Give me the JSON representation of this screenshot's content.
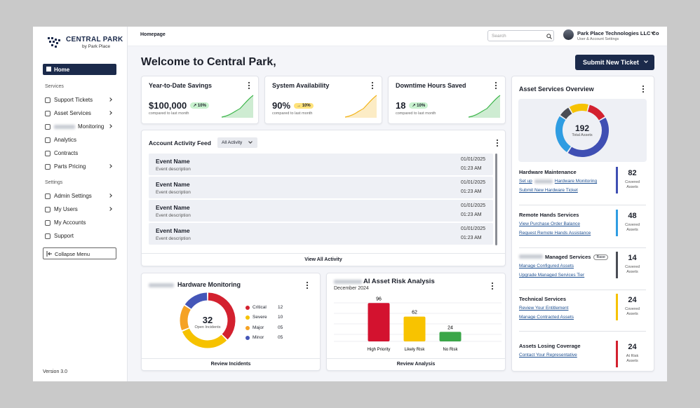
{
  "sidebar": {
    "logo_title": "CENTRAL PARK",
    "logo_subtitle": "by Park Place",
    "home": "Home",
    "services_heading": "Services",
    "services": [
      {
        "label": "Support Tickets",
        "submenu": true
      },
      {
        "label": "Asset Services",
        "submenu": true
      },
      {
        "label": "Monitoring",
        "submenu": true,
        "redacted_prefix": true
      },
      {
        "label": "Analytics",
        "submenu": false
      },
      {
        "label": "Contracts",
        "submenu": false
      },
      {
        "label": "Parts Pricing",
        "submenu": true
      }
    ],
    "settings_heading": "Settings",
    "settings": [
      {
        "label": "Admin Settings",
        "submenu": true
      },
      {
        "label": "My Users",
        "submenu": true
      },
      {
        "label": "My Accounts",
        "submenu": false
      },
      {
        "label": "Support",
        "submenu": false
      }
    ],
    "collapse": "Collapse Menu",
    "version": "Version 3.0"
  },
  "header": {
    "breadcrumb": "Homepage",
    "search_placeholder": "Search",
    "user_name": "Park Place Technologies LLC Co",
    "user_subtitle": "User & Account Settings"
  },
  "welcome": "Welcome to Central Park,",
  "submit_button": "Submit New Ticket",
  "kpis": [
    {
      "title": "Year-to-Date Savings",
      "value": "$100,000",
      "badge": "↗ 10%",
      "badge_color": "#c9f2cf",
      "trend_color": "#3cb54a",
      "note": "compared to last month"
    },
    {
      "title": "System Availability",
      "value": "90%",
      "badge": "→ 10%",
      "badge_color": "#ffe27a",
      "trend_color": "#f2b318",
      "note": "compared to last month"
    },
    {
      "title": "Downtime Hours Saved",
      "value": "18",
      "badge": "↗ 10%",
      "badge_color": "#c9f2cf",
      "trend_color": "#3cb54a",
      "note": "compared to last month"
    }
  ],
  "activity": {
    "title": "Account Activity Feed",
    "filter": "All Activity",
    "events": [
      {
        "name": "Event Name",
        "description": "Event description",
        "date": "01/01/2025",
        "time": "01:23 AM"
      },
      {
        "name": "Event Name",
        "description": "Event description",
        "date": "01/01/2025",
        "time": "01:23 AM"
      },
      {
        "name": "Event Name",
        "description": "Event description",
        "date": "01/01/2025",
        "time": "01:23 AM"
      },
      {
        "name": "Event Name",
        "description": "Event description",
        "date": "01/01/2025",
        "time": "01:23 AM"
      }
    ],
    "footer": "View All Activity"
  },
  "hardware_monitoring": {
    "type": "pie",
    "title": "Hardware Monitoring",
    "center_value": "32",
    "center_label": "Open Incidents",
    "categories": [
      "Critical",
      "Severe",
      "Major",
      "Minor"
    ],
    "values": [
      12,
      10,
      5,
      5
    ],
    "value_labels": [
      "12",
      "10",
      "05",
      "05"
    ],
    "colors": [
      "#d3212f",
      "#f6c200",
      "#f5a224",
      "#4456b8"
    ],
    "footer": "Review Incidents"
  },
  "risk_analysis": {
    "type": "bar",
    "title": "AI Asset Risk Analysis",
    "subtitle": "December 2024",
    "categories": [
      "High Priority",
      "Likely Risk",
      "No Risk"
    ],
    "values": [
      96,
      62,
      24
    ],
    "colors": [
      "#d3122f",
      "#f8c300",
      "#3aa648"
    ],
    "ylim": [
      0,
      100
    ],
    "footer": "Review Analysis"
  },
  "asset_overview": {
    "type": "pie",
    "title": "Asset Services Overview",
    "center_value": "192",
    "center_label": "Total Assets",
    "services": [
      {
        "title": "Hardware Maintenance",
        "links": [
          {
            "before": "Set up",
            "text": "Hardware Monitoring"
          },
          {
            "text": "Submit New Hardware Ticket"
          }
        ],
        "count": 82,
        "count_label": "Covered Assets",
        "color": "#3f4fb3"
      },
      {
        "title": "Remote Hands Services",
        "links": [
          {
            "text": "View Purchase Order Balance"
          },
          {
            "text": "Request Remote Hands Assistance"
          }
        ],
        "count": 48,
        "count_label": "Covered Assets",
        "color": "#2f9de2"
      },
      {
        "title": "Managed Services",
        "redacted_prefix": true,
        "badge": "Base",
        "links": [
          {
            "text": "Manage Configured Assets"
          },
          {
            "text": "Upgrade Managed Services Tier"
          }
        ],
        "count": 14,
        "count_label": "Covered Assets",
        "color": "#4a4d55"
      },
      {
        "title": "Technical Services",
        "links": [
          {
            "text": "Review Your Entitlement"
          },
          {
            "text": "Manage Contracted Assets"
          }
        ],
        "count": 24,
        "count_label": "Covered Assets",
        "color": "#f6c200"
      },
      {
        "title": "Assets Losing Coverage",
        "links": [
          {
            "text": "Contact Your Representative"
          }
        ],
        "count": 24,
        "count_label": "At Risk Assets",
        "color": "#d3212f"
      }
    ]
  }
}
